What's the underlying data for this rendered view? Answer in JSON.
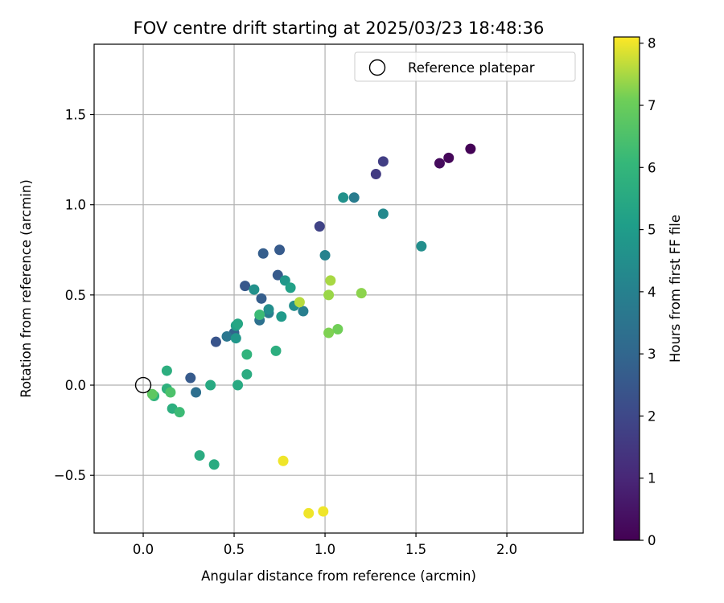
{
  "chart_data": {
    "type": "scatter",
    "title": "FOV centre drift starting at 2025/03/23 18:48:36",
    "xlabel": "Angular distance from reference (arcmin)",
    "ylabel": "Rotation from reference (arcmin)",
    "xlim": [
      -0.27,
      2.42
    ],
    "ylim": [
      -0.82,
      1.89
    ],
    "xticks": [
      0.0,
      0.5,
      1.0,
      1.5,
      2.0
    ],
    "xtick_labels": [
      "0.0",
      "0.5",
      "1.0",
      "1.5",
      "2.0"
    ],
    "yticks": [
      -0.5,
      0.0,
      0.5,
      1.0,
      1.5
    ],
    "ytick_labels": [
      "−0.5",
      "0.0",
      "0.5",
      "1.0",
      "1.5"
    ],
    "grid": true,
    "legend": {
      "position": "top-right",
      "entries": [
        {
          "label": "Reference platepar",
          "marker": "open-circle",
          "color": "#000000"
        }
      ]
    },
    "reference_point": {
      "x": 0.0,
      "y": 0.0
    },
    "colorbar": {
      "label": "Hours from first FF file",
      "colormap": "viridis",
      "range": [
        0,
        8.1
      ],
      "ticks": [
        0,
        1,
        2,
        3,
        4,
        5,
        6,
        7,
        8
      ],
      "tick_labels": [
        "0",
        "1",
        "2",
        "3",
        "4",
        "5",
        "6",
        "7",
        "8"
      ]
    },
    "points": [
      {
        "x": 1.8,
        "y": 1.31,
        "c": 0.05
      },
      {
        "x": 1.68,
        "y": 1.26,
        "c": 0.15
      },
      {
        "x": 1.63,
        "y": 1.23,
        "c": 0.25
      },
      {
        "x": 1.32,
        "y": 1.24,
        "c": 1.7
      },
      {
        "x": 1.28,
        "y": 1.17,
        "c": 1.6
      },
      {
        "x": 0.97,
        "y": 0.88,
        "c": 1.85
      },
      {
        "x": 0.4,
        "y": 0.24,
        "c": 2.4
      },
      {
        "x": 0.26,
        "y": 0.04,
        "c": 2.6
      },
      {
        "x": 0.56,
        "y": 0.55,
        "c": 2.5
      },
      {
        "x": 0.66,
        "y": 0.73,
        "c": 2.7
      },
      {
        "x": 0.75,
        "y": 0.75,
        "c": 2.6
      },
      {
        "x": 0.74,
        "y": 0.61,
        "c": 2.6
      },
      {
        "x": 0.65,
        "y": 0.48,
        "c": 2.7
      },
      {
        "x": 0.5,
        "y": 0.29,
        "c": 2.9
      },
      {
        "x": 0.29,
        "y": -0.04,
        "c": 3.3
      },
      {
        "x": 0.64,
        "y": 0.36,
        "c": 3.4
      },
      {
        "x": 0.46,
        "y": 0.27,
        "c": 3.6
      },
      {
        "x": 0.69,
        "y": 0.4,
        "c": 3.8
      },
      {
        "x": 0.88,
        "y": 0.41,
        "c": 3.9
      },
      {
        "x": 1.0,
        "y": 0.72,
        "c": 4.1
      },
      {
        "x": 1.16,
        "y": 1.04,
        "c": 3.8
      },
      {
        "x": 1.32,
        "y": 0.95,
        "c": 4.3
      },
      {
        "x": 1.53,
        "y": 0.77,
        "c": 4.5
      },
      {
        "x": 1.1,
        "y": 1.04,
        "c": 4.6
      },
      {
        "x": 0.61,
        "y": 0.53,
        "c": 4.6
      },
      {
        "x": 0.69,
        "y": 0.42,
        "c": 4.5
      },
      {
        "x": 0.83,
        "y": 0.44,
        "c": 4.5
      },
      {
        "x": 0.78,
        "y": 0.58,
        "c": 4.8
      },
      {
        "x": 0.51,
        "y": 0.26,
        "c": 4.8
      },
      {
        "x": 0.76,
        "y": 0.38,
        "c": 4.9
      },
      {
        "x": 0.81,
        "y": 0.54,
        "c": 5.2
      },
      {
        "x": 0.51,
        "y": 0.33,
        "c": 5.2
      },
      {
        "x": 0.52,
        "y": 0.34,
        "c": 5.4
      },
      {
        "x": 0.37,
        "y": 0.0,
        "c": 5.5
      },
      {
        "x": 0.52,
        "y": 0.0,
        "c": 5.5
      },
      {
        "x": 0.57,
        "y": 0.06,
        "c": 5.6
      },
      {
        "x": 0.73,
        "y": 0.19,
        "c": 5.7
      },
      {
        "x": 0.57,
        "y": 0.17,
        "c": 5.9
      },
      {
        "x": 0.31,
        "y": -0.39,
        "c": 5.6
      },
      {
        "x": 0.39,
        "y": -0.44,
        "c": 5.6
      },
      {
        "x": 0.13,
        "y": 0.08,
        "c": 5.7
      },
      {
        "x": 0.13,
        "y": -0.02,
        "c": 5.8
      },
      {
        "x": 0.16,
        "y": -0.13,
        "c": 5.7
      },
      {
        "x": 0.06,
        "y": -0.06,
        "c": 5.9
      },
      {
        "x": 0.64,
        "y": 0.39,
        "c": 6.2
      },
      {
        "x": 0.2,
        "y": -0.15,
        "c": 6.2
      },
      {
        "x": 0.15,
        "y": -0.04,
        "c": 6.5
      },
      {
        "x": 0.05,
        "y": -0.05,
        "c": 6.8
      },
      {
        "x": 1.07,
        "y": 0.31,
        "c": 7.1
      },
      {
        "x": 1.02,
        "y": 0.29,
        "c": 7.2
      },
      {
        "x": 1.2,
        "y": 0.51,
        "c": 7.3
      },
      {
        "x": 1.02,
        "y": 0.5,
        "c": 7.4
      },
      {
        "x": 1.03,
        "y": 0.58,
        "c": 7.5
      },
      {
        "x": 0.86,
        "y": 0.46,
        "c": 7.6
      },
      {
        "x": 0.77,
        "y": -0.42,
        "c": 8.0
      },
      {
        "x": 0.91,
        "y": -0.71,
        "c": 8.0
      },
      {
        "x": 0.99,
        "y": -0.7,
        "c": 8.0
      }
    ]
  }
}
